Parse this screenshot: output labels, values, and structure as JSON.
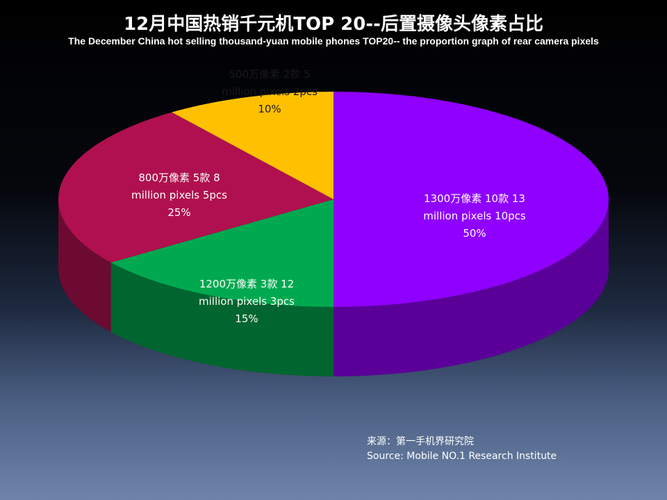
{
  "title": "12月中国热销千元机TOP 20--后置摄像头像素占比",
  "subtitle": "The December China hot selling thousand-yuan mobile phones TOP20-- the proportion graph of rear camera pixels",
  "chart_data": {
    "type": "pie",
    "title": "12月中国热销千元机TOP 20--后置摄像头像素占比",
    "subtitle": "The December China hot selling thousand-yuan mobile phones TOP20-- the proportion graph of rear camera pixels",
    "slices": [
      {
        "label_zh": "1300万像素 10款 13",
        "label_en": "million pixels 10pcs",
        "percent_label": "50%",
        "count": 10,
        "percent": 50,
        "color": "#8f00ff",
        "side_color": "#5a0098"
      },
      {
        "label_zh": "1200万像素 3款 12",
        "label_en": "million pixels 3pcs",
        "percent_label": "15%",
        "count": 3,
        "percent": 15,
        "color": "#00a94f",
        "side_color": "#00652f"
      },
      {
        "label_zh": "800万像素 5款 8",
        "label_en": "million pixels 5pcs",
        "percent_label": "25%",
        "count": 5,
        "percent": 25,
        "color": "#b0104f",
        "side_color": "#6c0a31"
      },
      {
        "label_zh": "500万像素 2款 5",
        "label_en": "million pixels 2pcs",
        "percent_label": "10%",
        "count": 2,
        "percent": 10,
        "color": "#ffc000",
        "side_color": "#a87f00"
      }
    ]
  },
  "source": {
    "line_zh": "来源：第一手机界研究院",
    "line_en": "Source: Mobile NO.1 Research Institute"
  }
}
